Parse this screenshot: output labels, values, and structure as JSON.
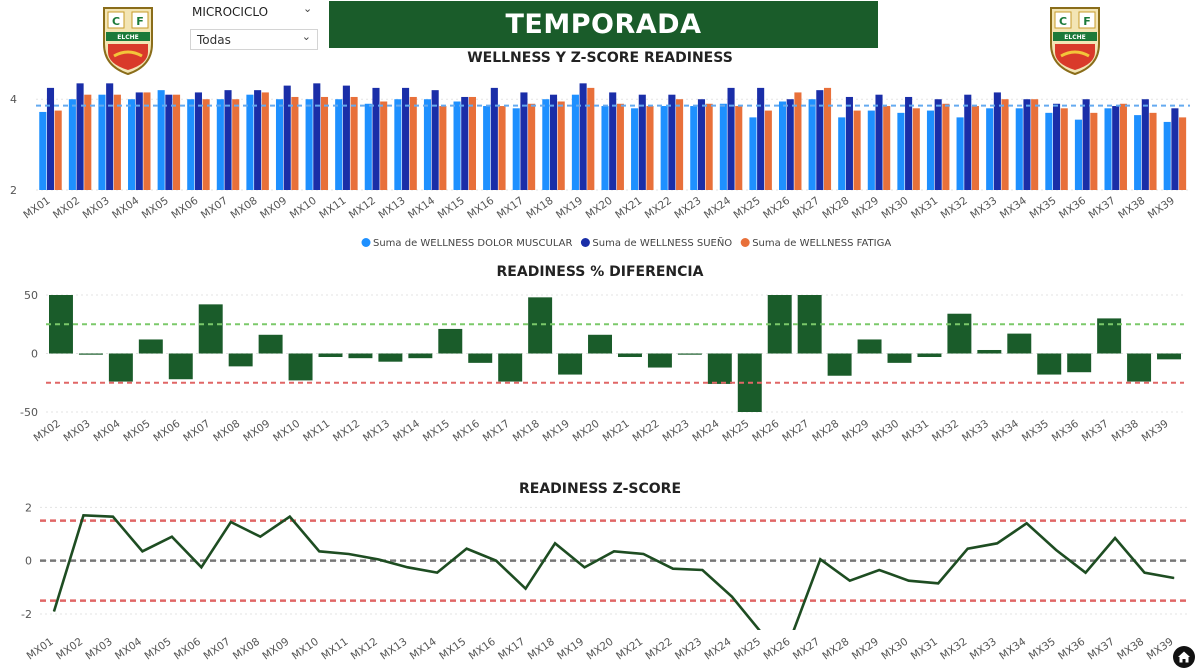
{
  "header": {
    "banner_title": "TEMPORADA",
    "slicer_label": "MICROCICLO",
    "slicer_value": "Todas",
    "logo_text_left": "C",
    "logo_text_right": "F",
    "logo_ribbon": "ELCHE"
  },
  "colors": {
    "banner": "#1a5c2a",
    "dolor": "#1e90ff",
    "sueno": "#1a2ea8",
    "fatiga": "#e8703a",
    "bar_green": "#1a5c2a",
    "line_green": "#1e4d22",
    "upper_green": "#7bc96a",
    "red_dash": "#e06666",
    "avg_blue": "#64aaf0"
  },
  "chart_data": [
    {
      "type": "bar",
      "title": "WELLNESS Y Z-SCORE READINESS",
      "categories": [
        "MX01",
        "MX02",
        "MX03",
        "MX04",
        "MX05",
        "MX06",
        "MX07",
        "MX08",
        "MX09",
        "MX10",
        "MX11",
        "MX12",
        "MX13",
        "MX14",
        "MX15",
        "MX16",
        "MX17",
        "MX18",
        "MX19",
        "MX20",
        "MX21",
        "MX22",
        "MX23",
        "MX24",
        "MX25",
        "MX26",
        "MX27",
        "MX28",
        "MX29",
        "MX30",
        "MX31",
        "MX32",
        "MX33",
        "MX34",
        "MX35",
        "MX36",
        "MX37",
        "MX38",
        "MX39"
      ],
      "series": [
        {
          "name": "Suma de WELLNESS DOLOR MUSCULAR",
          "values": [
            3.72,
            4.0,
            4.1,
            4.0,
            4.2,
            4.0,
            4.0,
            4.1,
            4.0,
            4.0,
            4.0,
            3.9,
            4.0,
            4.0,
            3.95,
            3.85,
            3.8,
            4.0,
            4.1,
            3.85,
            3.8,
            3.85,
            3.85,
            3.9,
            3.6,
            3.95,
            4.0,
            3.6,
            3.75,
            3.7,
            3.75,
            3.6,
            3.8,
            3.8,
            3.7,
            3.55,
            3.8,
            3.65,
            3.5
          ]
        },
        {
          "name": "Suma de WELLNESS SUEÑO",
          "values": [
            4.25,
            4.35,
            4.35,
            4.15,
            4.1,
            4.15,
            4.2,
            4.2,
            4.3,
            4.35,
            4.3,
            4.25,
            4.25,
            4.2,
            4.05,
            4.25,
            4.15,
            4.1,
            4.35,
            4.15,
            4.1,
            4.1,
            4.0,
            4.25,
            4.25,
            4.0,
            4.2,
            4.05,
            4.1,
            4.05,
            4.0,
            4.1,
            4.15,
            4.0,
            3.9,
            4.0,
            3.85,
            4.0,
            3.8
          ]
        },
        {
          "name": "Suma de WELLNESS FATIGA",
          "values": [
            3.75,
            4.1,
            4.1,
            4.15,
            4.1,
            4.0,
            4.0,
            4.15,
            4.05,
            4.05,
            4.05,
            3.95,
            4.05,
            3.85,
            4.05,
            3.85,
            3.9,
            3.95,
            4.25,
            3.9,
            3.85,
            4.0,
            3.9,
            3.85,
            3.75,
            4.15,
            4.25,
            3.75,
            3.85,
            3.8,
            3.9,
            3.85,
            4.0,
            4.0,
            3.8,
            3.7,
            3.9,
            3.7,
            3.6
          ]
        }
      ],
      "ylim": [
        2,
        4.6
      ],
      "y_ticks": [
        "2",
        "4"
      ],
      "average_line": 3.86,
      "legend": "bottom"
    },
    {
      "type": "bar",
      "title": "READINESS % DIFERENCIA",
      "categories": [
        "MX02",
        "MX03",
        "MX04",
        "MX05",
        "MX06",
        "MX07",
        "MX08",
        "MX09",
        "MX10",
        "MX11",
        "MX12",
        "MX13",
        "MX14",
        "MX15",
        "MX16",
        "MX17",
        "MX18",
        "MX19",
        "MX20",
        "MX21",
        "MX22",
        "MX23",
        "MX24",
        "MX25",
        "MX26",
        "MX27",
        "MX28",
        "MX29",
        "MX30",
        "MX31",
        "MX32",
        "MX33",
        "MX34",
        "MX35",
        "MX36",
        "MX37",
        "MX38",
        "MX39"
      ],
      "values": [
        50,
        -1,
        -24,
        12,
        -22,
        42,
        -11,
        16,
        -23,
        -3,
        -4,
        -7,
        -4,
        21,
        -8,
        -24,
        48,
        -18,
        16,
        -3,
        -12,
        -1,
        -26,
        -50,
        50,
        50,
        -19,
        12,
        -8,
        -3,
        34,
        3,
        17,
        -18,
        -16,
        30,
        -24,
        -5
      ],
      "ylim": [
        -50,
        50
      ],
      "y_ticks": [
        "50",
        "0",
        "-50"
      ],
      "upper_line": 25,
      "lower_line": -25
    },
    {
      "type": "line",
      "title": "READINESS Z-SCORE",
      "categories": [
        "MX01",
        "MX02",
        "MX03",
        "MX04",
        "MX05",
        "MX06",
        "MX07",
        "MX08",
        "MX09",
        "MX10",
        "MX11",
        "MX12",
        "MX13",
        "MX14",
        "MX15",
        "MX16",
        "MX17",
        "MX18",
        "MX19",
        "MX20",
        "MX21",
        "MX22",
        "MX23",
        "MX24",
        "MX25",
        "MX26",
        "MX27",
        "MX28",
        "MX29",
        "MX30",
        "MX31",
        "MX32",
        "MX33",
        "MX34",
        "MX35",
        "MX36",
        "MX37",
        "MX38",
        "MX39"
      ],
      "values": [
        -1.9,
        1.7,
        1.65,
        0.35,
        0.9,
        -0.25,
        1.45,
        0.9,
        1.65,
        0.35,
        0.25,
        0.05,
        -0.25,
        -0.45,
        0.45,
        0.0,
        -1.05,
        0.65,
        -0.25,
        0.35,
        0.25,
        -0.3,
        -0.35,
        -1.35,
        -2.7,
        -2.9,
        0.05,
        -0.75,
        -0.35,
        -0.75,
        -0.85,
        0.45,
        0.65,
        1.4,
        0.4,
        -0.45,
        0.85,
        -0.45,
        -0.65
      ],
      "ylim": [
        -2.6,
        2.2
      ],
      "y_ticks": [
        "2",
        "0",
        "-2"
      ],
      "upper_line": 1.5,
      "zero_line": 0,
      "lower_line": -1.5
    }
  ]
}
